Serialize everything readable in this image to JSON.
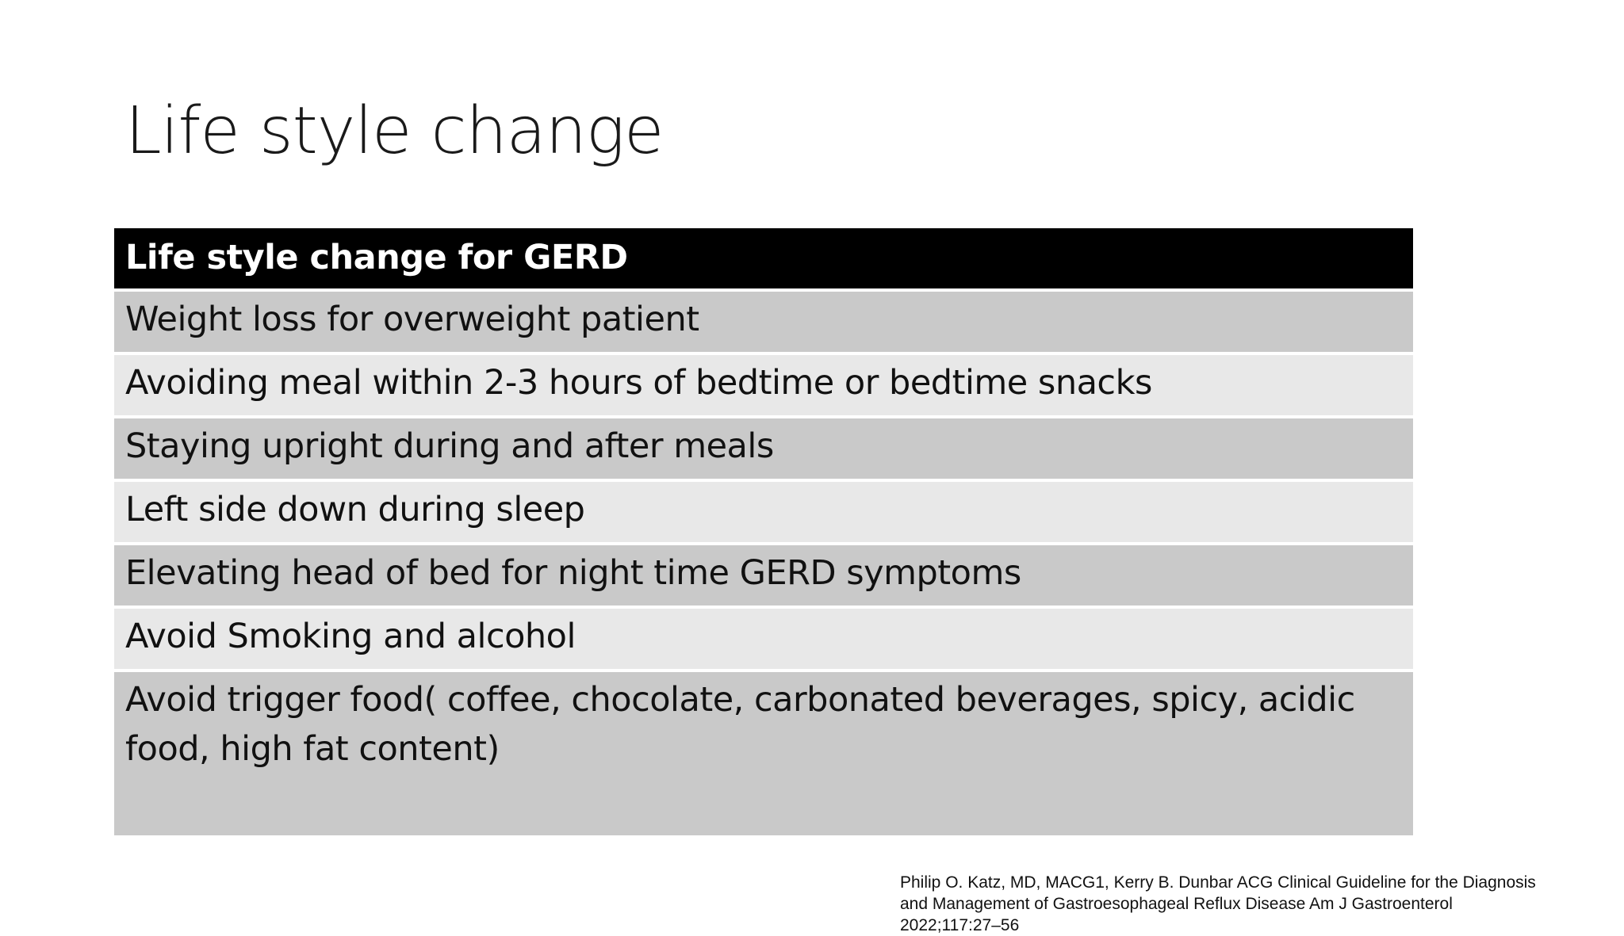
{
  "title": "Life style change",
  "table": {
    "header": "Life style change for GERD",
    "rows": [
      "Weight loss for overweight patient",
      "Avoiding meal within 2-3 hours of bedtime or bedtime snacks",
      "Staying upright during and after meals",
      "Left side down during sleep",
      "Elevating head of bed for night time GERD symptoms",
      "Avoid Smoking and alcohol",
      "Avoid trigger food( coffee, chocolate, carbonated beverages, spicy, acidic food, high fat content)"
    ]
  },
  "citation": [
    "Philip O. Katz, MD, MACG1, Kerry B. Dunbar ACG Clinical Guideline for the Diagnosis",
    "and Management of Gastroesophageal Reflux Disease Am J Gastroenterol",
    "2022;117:27–56"
  ]
}
